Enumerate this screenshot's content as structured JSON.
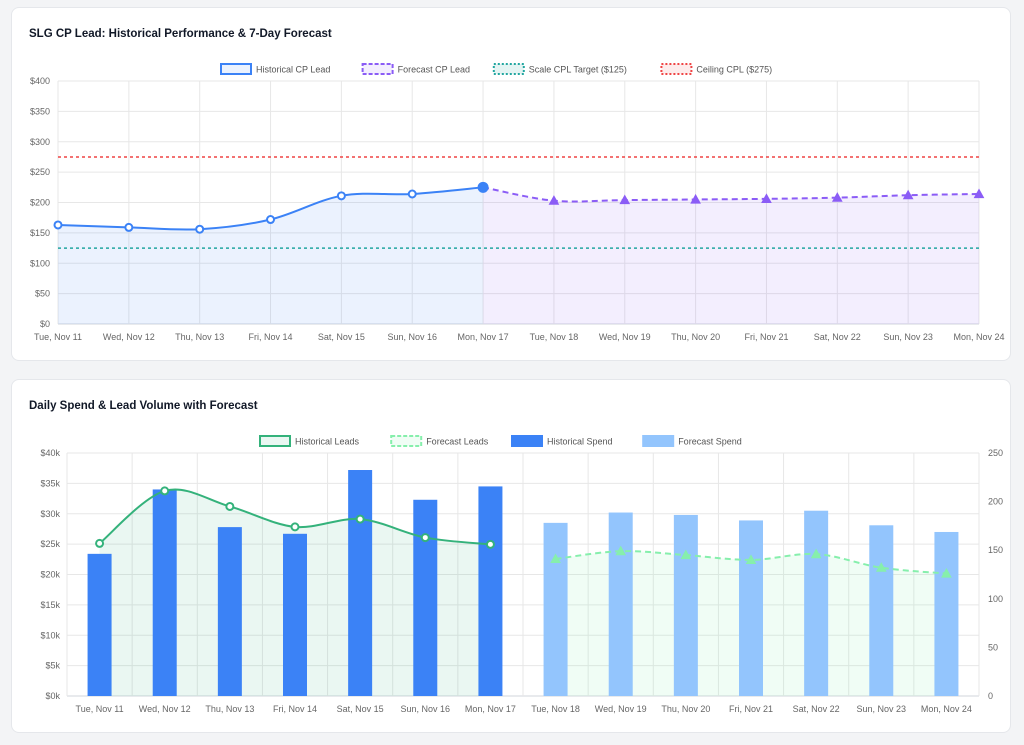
{
  "charts": {
    "cpl": {
      "title": "SLG CP Lead: Historical Performance & 7-Day Forecast",
      "legend": [
        "Historical CP Lead",
        "Forecast CP Lead",
        "Scale CPL Target ($125)",
        "Ceiling CPL ($275)"
      ]
    },
    "spend": {
      "title": "Daily Spend & Lead Volume with Forecast",
      "legend": [
        "Historical Leads",
        "Forecast Leads",
        "Historical Spend",
        "Forecast Spend"
      ]
    }
  },
  "colors": {
    "historical_line": "#3b82f6",
    "forecast_line": "#8b5cf6",
    "scale_target": "#22a6a0",
    "ceiling": "#ef4444",
    "historical_leads": "#34b27b",
    "forecast_leads": "#86efac",
    "historical_spend": "#3b82f6",
    "forecast_spend": "#93c5fd"
  },
  "chart_data": [
    {
      "type": "line",
      "title": "SLG CP Lead: Historical Performance & 7-Day Forecast",
      "categories": [
        "Tue, Nov 11",
        "Wed, Nov 12",
        "Thu, Nov 13",
        "Fri, Nov 14",
        "Sat, Nov 15",
        "Sun, Nov 16",
        "Mon, Nov 17",
        "Tue, Nov 18",
        "Wed, Nov 19",
        "Thu, Nov 20",
        "Fri, Nov 21",
        "Sat, Nov 22",
        "Sun, Nov 23",
        "Mon, Nov 24"
      ],
      "series": [
        {
          "name": "Historical CP Lead",
          "values": [
            163,
            159,
            156,
            172,
            211,
            214,
            225,
            null,
            null,
            null,
            null,
            null,
            null,
            null
          ]
        },
        {
          "name": "Forecast CP Lead",
          "values": [
            null,
            null,
            null,
            null,
            null,
            null,
            225,
            203,
            204,
            205,
            206,
            208,
            212,
            214
          ]
        },
        {
          "name": "Scale CPL Target ($125)",
          "values": [
            125,
            125,
            125,
            125,
            125,
            125,
            125,
            125,
            125,
            125,
            125,
            125,
            125,
            125
          ]
        },
        {
          "name": "Ceiling CPL ($275)",
          "values": [
            275,
            275,
            275,
            275,
            275,
            275,
            275,
            275,
            275,
            275,
            275,
            275,
            275,
            275
          ]
        }
      ],
      "ylim": [
        0,
        400
      ],
      "yticks": [
        "$0",
        "$50",
        "$100",
        "$150",
        "$200",
        "$250",
        "$300",
        "$350",
        "$400"
      ],
      "grid": true,
      "legend_position": "top"
    },
    {
      "type": "bar",
      "title": "Daily Spend & Lead Volume with Forecast",
      "categories": [
        "Tue, Nov 11",
        "Wed, Nov 12",
        "Thu, Nov 13",
        "Fri, Nov 14",
        "Sat, Nov 15",
        "Sun, Nov 16",
        "Mon, Nov 17",
        "Tue, Nov 18",
        "Wed, Nov 19",
        "Thu, Nov 20",
        "Fri, Nov 21",
        "Sat, Nov 22",
        "Sun, Nov 23",
        "Mon, Nov 24"
      ],
      "series": [
        {
          "name": "Historical Spend",
          "axis": "left",
          "values": [
            23400,
            34000,
            27800,
            26700,
            37200,
            32300,
            34500,
            null,
            null,
            null,
            null,
            null,
            null,
            null
          ]
        },
        {
          "name": "Forecast Spend",
          "axis": "left",
          "values": [
            null,
            null,
            null,
            null,
            null,
            null,
            null,
            28500,
            30200,
            29800,
            28900,
            30500,
            28100,
            27000
          ]
        },
        {
          "name": "Historical Leads",
          "axis": "right",
          "values": [
            157,
            211,
            195,
            174,
            182,
            163,
            156,
            null,
            null,
            null,
            null,
            null,
            null,
            null
          ]
        },
        {
          "name": "Forecast Leads",
          "axis": "right",
          "values": [
            null,
            null,
            null,
            null,
            null,
            null,
            null,
            141,
            149,
            145,
            140,
            146,
            132,
            126
          ]
        }
      ],
      "ylim": [
        0,
        40000
      ],
      "yticks": [
        "$0k",
        "$5k",
        "$10k",
        "$15k",
        "$20k",
        "$25k",
        "$30k",
        "$35k",
        "$40k"
      ],
      "y2lim": [
        0,
        250
      ],
      "y2ticks": [
        "0",
        "50",
        "100",
        "150",
        "200",
        "250"
      ],
      "grid": true,
      "legend_position": "top"
    }
  ]
}
